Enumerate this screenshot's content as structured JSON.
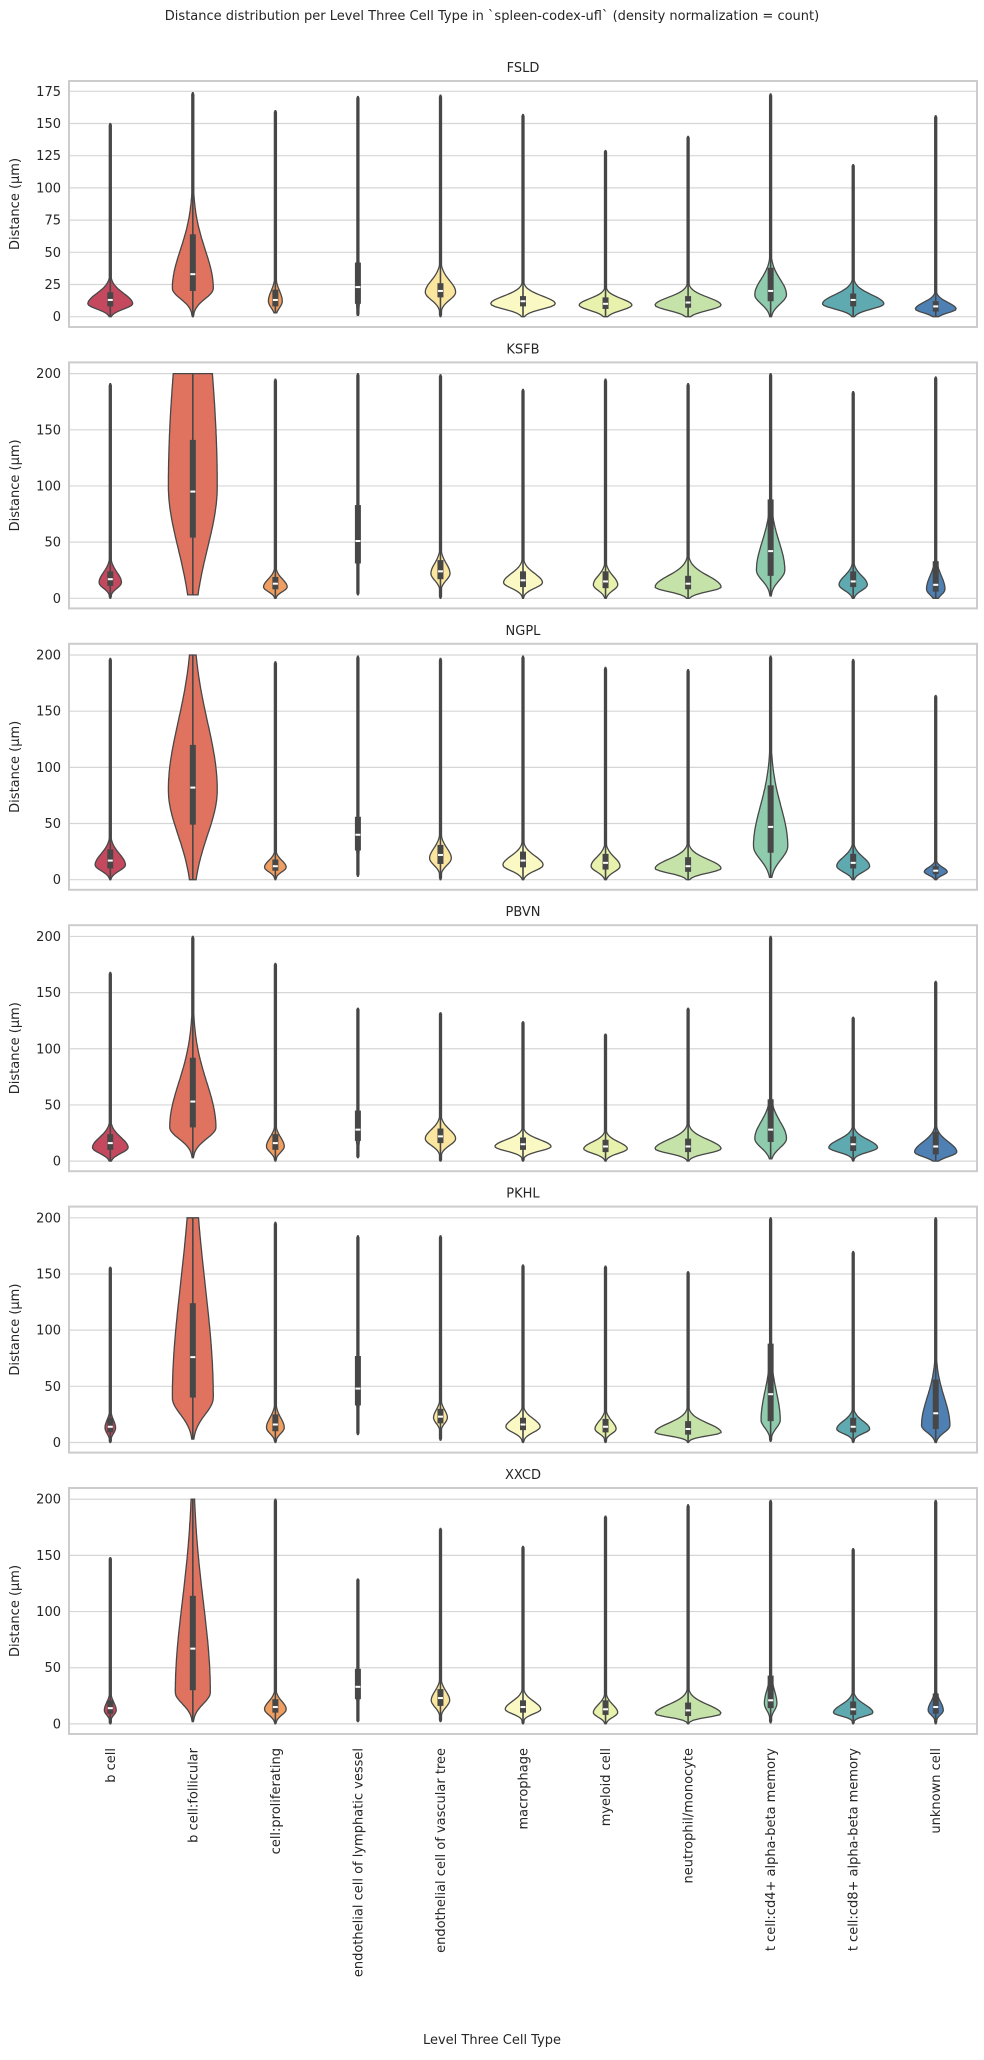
{
  "title": "Distance distribution per Level Three Cell Type in `spleen-codex-ufl` (density normalization = count)",
  "xlabel": "Level Three Cell Type",
  "ylabel": "Distance (µm)",
  "colors": [
    "#c4495f",
    "#e07360",
    "#ef9e62",
    "#f8cd86",
    "#fbe6a0",
    "#fbf9c3",
    "#e8f2ad",
    "#c5e3a8",
    "#8fcbad",
    "#5faab0",
    "#4f80b3"
  ],
  "categories": [
    "b cell",
    "b cell:follicular",
    "cell:proliferating",
    "endothelial cell of lymphatic vessel",
    "endothelial cell of vascular tree",
    "macrophage",
    "myeloid cell",
    "neutrophil/monocyte",
    "t cell:cd4+ alpha-beta memory",
    "t cell:cd8+ alpha-beta memory",
    "unknown cell"
  ],
  "chart_data": [
    {
      "type": "violin",
      "title": "FSLD",
      "ylim": [
        -8,
        183
      ],
      "yticks": [
        0,
        25,
        50,
        75,
        100,
        125,
        150,
        175
      ],
      "stat_fields": [
        "min",
        "max",
        "q1",
        "median",
        "q3",
        "mode",
        "spread_low",
        "spread_high",
        "relative_width"
      ],
      "stats": [
        [
          0,
          150,
          8,
          13,
          19,
          10,
          4,
          8,
          0.68
        ],
        [
          0,
          174,
          20,
          33,
          64,
          22,
          8,
          30,
          0.62
        ],
        [
          3,
          160,
          8,
          13,
          21,
          12,
          5,
          8,
          0.21
        ],
        [
          1,
          171,
          10,
          23,
          42,
          20,
          12,
          20,
          0.06
        ],
        [
          0,
          172,
          15,
          20,
          26,
          19,
          6,
          9,
          0.46
        ],
        [
          0,
          157,
          8,
          12,
          16,
          10,
          4,
          6,
          0.98
        ],
        [
          0,
          129,
          6,
          10,
          15,
          9,
          4,
          5,
          0.8
        ],
        [
          0,
          140,
          7,
          11,
          16,
          9,
          4,
          6,
          1.0
        ],
        [
          0,
          173,
          12,
          20,
          38,
          17,
          7,
          12,
          0.48
        ],
        [
          0,
          118,
          8,
          13,
          18,
          10,
          4,
          7,
          0.93
        ],
        [
          0,
          156,
          4,
          8,
          12,
          6,
          3,
          5,
          0.62
        ]
      ]
    },
    {
      "type": "violin",
      "title": "KSFB",
      "ylim": [
        -9,
        210
      ],
      "yticks": [
        0,
        50,
        100,
        150,
        200
      ],
      "stat_fields": [
        "min",
        "max",
        "q1",
        "median",
        "q3",
        "mode",
        "spread_low",
        "spread_high",
        "relative_width"
      ],
      "stats": [
        [
          0,
          191,
          11,
          17,
          24,
          14,
          5,
          9,
          0.34
        ],
        [
          3,
          200,
          54,
          95,
          141,
          100,
          55,
          150,
          0.74
        ],
        [
          0,
          195,
          8,
          13,
          19,
          10,
          4,
          7,
          0.36
        ],
        [
          3,
          200,
          31,
          51,
          83,
          50,
          20,
          30,
          0.05
        ],
        [
          0,
          199,
          17,
          24,
          34,
          22,
          6,
          9,
          0.29
        ],
        [
          0,
          186,
          10,
          16,
          24,
          14,
          5,
          8,
          0.59
        ],
        [
          0,
          195,
          9,
          15,
          24,
          12,
          5,
          8,
          0.37
        ],
        [
          0,
          191,
          8,
          13,
          20,
          10,
          4,
          10,
          1.0
        ],
        [
          2,
          200,
          20,
          42,
          88,
          25,
          9,
          25,
          0.43
        ],
        [
          0,
          184,
          10,
          15,
          24,
          12,
          5,
          8,
          0.43
        ],
        [
          0,
          197,
          6,
          12,
          33,
          8,
          5,
          12,
          0.28
        ]
      ]
    },
    {
      "type": "violin",
      "title": "NGPL",
      "ylim": [
        -9,
        210
      ],
      "yticks": [
        0,
        50,
        100,
        150,
        200
      ],
      "stat_fields": [
        "min",
        "max",
        "q1",
        "median",
        "q3",
        "mode",
        "spread_low",
        "spread_high",
        "relative_width"
      ],
      "stats": [
        [
          0,
          197,
          10,
          17,
          27,
          13,
          5,
          10,
          0.46
        ],
        [
          0,
          200,
          49,
          82,
          120,
          80,
          40,
          60,
          0.74
        ],
        [
          0,
          194,
          8,
          12,
          18,
          11,
          4,
          6,
          0.33
        ],
        [
          3,
          199,
          26,
          40,
          56,
          35,
          12,
          20,
          0.05
        ],
        [
          0,
          197,
          14,
          22,
          31,
          19,
          6,
          9,
          0.33
        ],
        [
          0,
          199,
          11,
          17,
          25,
          13,
          5,
          8,
          0.61
        ],
        [
          0,
          189,
          9,
          15,
          23,
          12,
          5,
          8,
          0.44
        ],
        [
          0,
          187,
          7,
          12,
          20,
          10,
          4,
          8,
          1.0
        ],
        [
          2,
          199,
          24,
          47,
          84,
          30,
          12,
          35,
          0.52
        ],
        [
          0,
          196,
          10,
          15,
          23,
          12,
          5,
          8,
          0.5
        ],
        [
          0,
          164,
          5,
          8,
          12,
          7,
          3,
          4,
          0.35
        ]
      ]
    },
    {
      "type": "violin",
      "title": "PBVN",
      "ylim": [
        -9,
        210
      ],
      "yticks": [
        0,
        50,
        100,
        150,
        200
      ],
      "stat_fields": [
        "min",
        "max",
        "q1",
        "median",
        "q3",
        "mode",
        "spread_low",
        "spread_high",
        "relative_width"
      ],
      "stats": [
        [
          0,
          168,
          10,
          16,
          24,
          12,
          5,
          9,
          0.54
        ],
        [
          3,
          200,
          30,
          53,
          92,
          30,
          10,
          40,
          0.7
        ],
        [
          0,
          176,
          10,
          16,
          24,
          13,
          5,
          8,
          0.27
        ],
        [
          3,
          136,
          18,
          28,
          45,
          22,
          8,
          15,
          0.05
        ],
        [
          0,
          132,
          16,
          22,
          29,
          20,
          6,
          8,
          0.46
        ],
        [
          0,
          124,
          10,
          15,
          21,
          13,
          4,
          6,
          0.85
        ],
        [
          0,
          113,
          8,
          13,
          19,
          11,
          4,
          6,
          0.66
        ],
        [
          0,
          136,
          8,
          13,
          20,
          11,
          4,
          8,
          1.0
        ],
        [
          2,
          200,
          17,
          28,
          55,
          20,
          8,
          15,
          0.48
        ],
        [
          0,
          128,
          9,
          15,
          22,
          12,
          4,
          7,
          0.74
        ],
        [
          0,
          160,
          6,
          13,
          26,
          8,
          4,
          9,
          0.64
        ]
      ]
    },
    {
      "type": "violin",
      "title": "PKHL",
      "ylim": [
        -9,
        210
      ],
      "yticks": [
        0,
        50,
        100,
        150,
        200
      ],
      "stat_fields": [
        "min",
        "max",
        "q1",
        "median",
        "q3",
        "mode",
        "spread_low",
        "spread_high",
        "relative_width"
      ],
      "stats": [
        [
          0,
          156,
          9,
          14,
          22,
          13,
          5,
          7,
          0.16
        ],
        [
          3,
          200,
          40,
          76,
          124,
          40,
          15,
          100,
          0.62
        ],
        [
          0,
          196,
          10,
          16,
          25,
          13,
          5,
          9,
          0.27
        ],
        [
          7,
          184,
          33,
          48,
          77,
          45,
          15,
          25,
          0.05
        ],
        [
          2,
          184,
          17,
          23,
          30,
          22,
          5,
          7,
          0.21
        ],
        [
          0,
          158,
          11,
          16,
          22,
          14,
          5,
          7,
          0.52
        ],
        [
          0,
          157,
          9,
          14,
          21,
          12,
          4,
          7,
          0.32
        ],
        [
          0,
          152,
          7,
          12,
          19,
          9,
          3,
          8,
          1.0
        ],
        [
          1,
          200,
          19,
          43,
          88,
          20,
          7,
          25,
          0.29
        ],
        [
          0,
          170,
          9,
          14,
          22,
          12,
          4,
          7,
          0.5
        ],
        [
          0,
          200,
          12,
          26,
          56,
          15,
          6,
          25,
          0.43
        ]
      ]
    },
    {
      "type": "violin",
      "title": "XXCD",
      "ylim": [
        -9,
        210
      ],
      "yticks": [
        0,
        50,
        100,
        150,
        200
      ],
      "stat_fields": [
        "min",
        "max",
        "q1",
        "median",
        "q3",
        "mode",
        "spread_low",
        "spread_high",
        "relative_width"
      ],
      "stats": [
        [
          0,
          148,
          9,
          14,
          21,
          12,
          4,
          7,
          0.18
        ],
        [
          2,
          200,
          30,
          67,
          114,
          28,
          10,
          80,
          0.53
        ],
        [
          0,
          200,
          10,
          15,
          22,
          13,
          5,
          7,
          0.33
        ],
        [
          2,
          129,
          22,
          33,
          49,
          30,
          10,
          15,
          0.05
        ],
        [
          2,
          174,
          16,
          23,
          31,
          21,
          6,
          8,
          0.28
        ],
        [
          0,
          158,
          10,
          15,
          21,
          13,
          4,
          7,
          0.54
        ],
        [
          0,
          185,
          8,
          13,
          21,
          10,
          4,
          7,
          0.37
        ],
        [
          0,
          195,
          7,
          12,
          19,
          9,
          3,
          8,
          1.0
        ],
        [
          1,
          199,
          14,
          21,
          43,
          18,
          6,
          12,
          0.19
        ],
        [
          0,
          156,
          8,
          13,
          20,
          10,
          3,
          7,
          0.6
        ],
        [
          0,
          199,
          9,
          15,
          27,
          12,
          4,
          8,
          0.23
        ]
      ]
    }
  ]
}
